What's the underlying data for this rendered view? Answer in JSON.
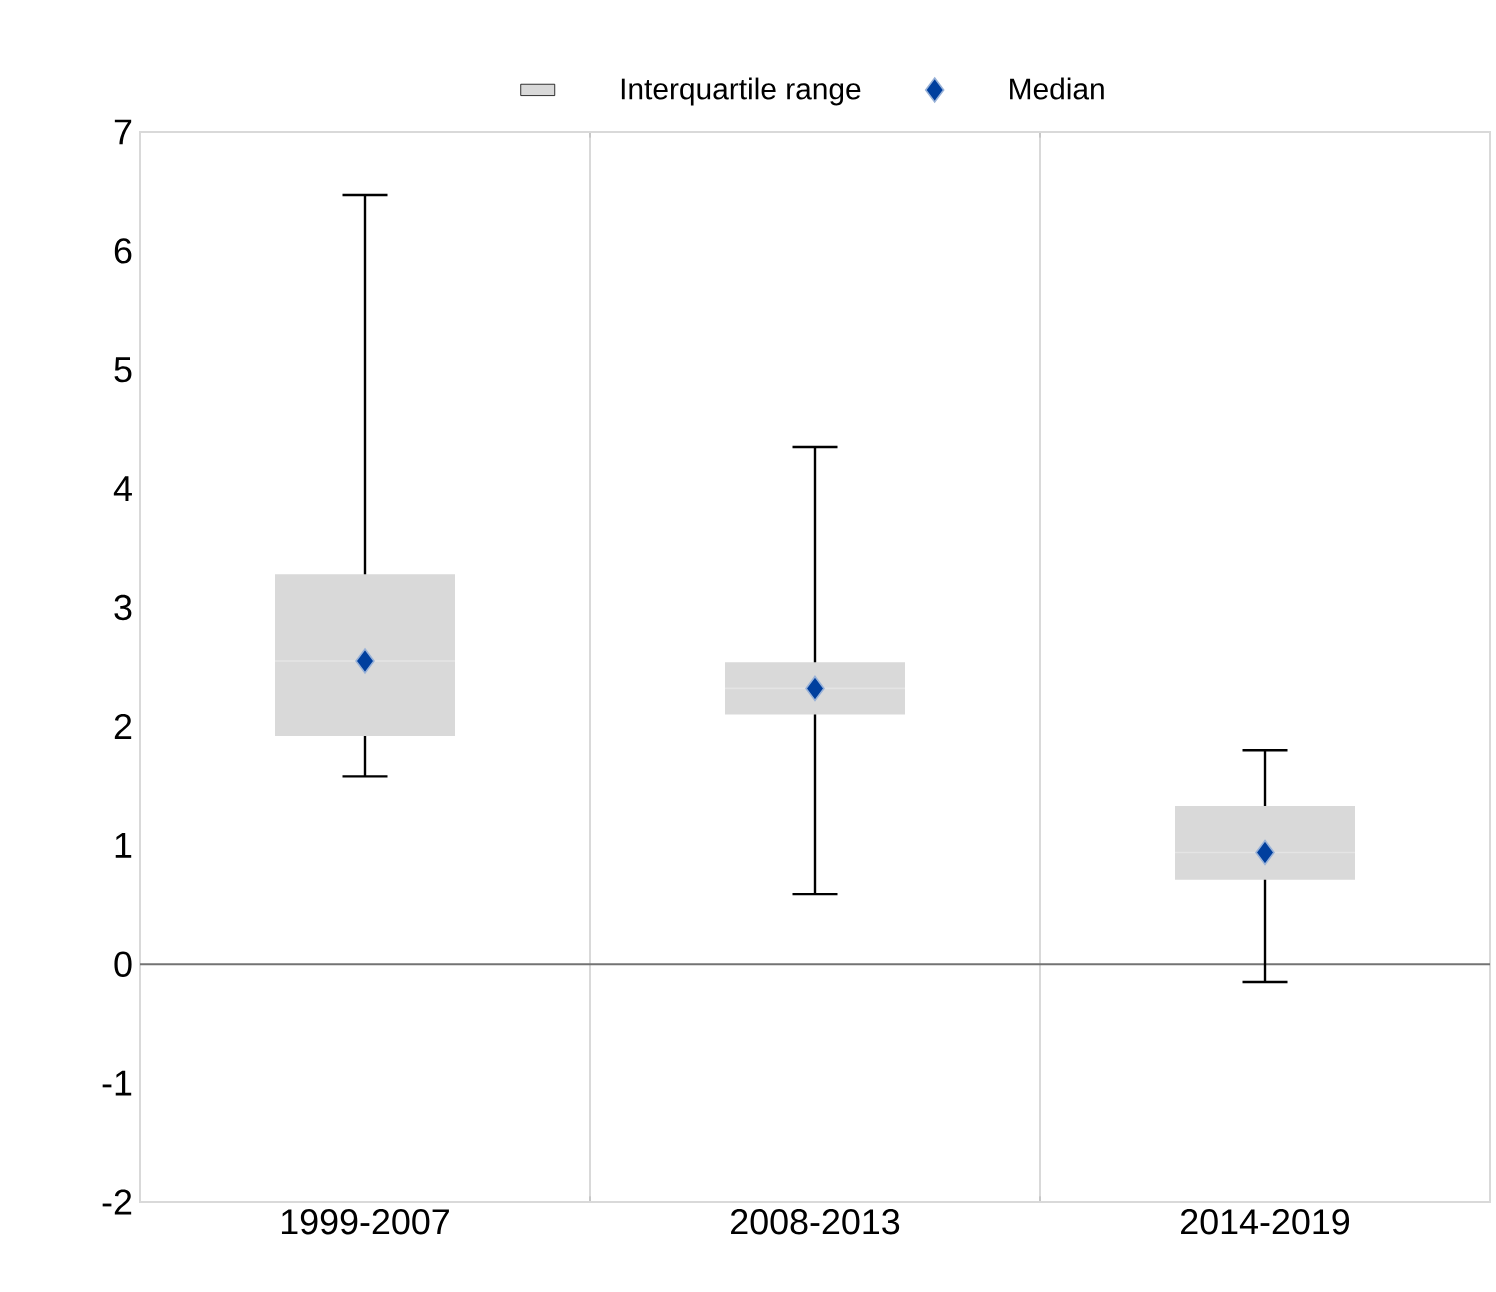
{
  "chart_data": {
    "type": "box",
    "categories": [
      "1999-2007",
      "2008-2013",
      "2014-2019"
    ],
    "series": [
      {
        "name": "Interquartile range",
        "color": "#d9d9d9",
        "boxes": [
          {
            "low": 1.58,
            "q1": 1.92,
            "median": 2.55,
            "q3": 3.28,
            "high": 6.47
          },
          {
            "low": 0.59,
            "q1": 2.1,
            "median": 2.32,
            "q3": 2.54,
            "high": 4.35
          },
          {
            "low": -0.15,
            "q1": 0.71,
            "median": 0.94,
            "q3": 1.33,
            "high": 1.8
          }
        ]
      },
      {
        "name": "Median",
        "type": "scatter",
        "color": "#003f9e",
        "marker": "diamond",
        "x": [
          "1999-2007",
          "2008-2013",
          "2014-2019"
        ],
        "values": [
          2.55,
          2.32,
          0.94
        ]
      }
    ],
    "ylim": [
      -2,
      7
    ],
    "yticks": [
      -2,
      -1,
      0,
      1,
      2,
      3,
      4,
      5,
      6,
      7
    ],
    "grid": "x",
    "legend": "top"
  }
}
